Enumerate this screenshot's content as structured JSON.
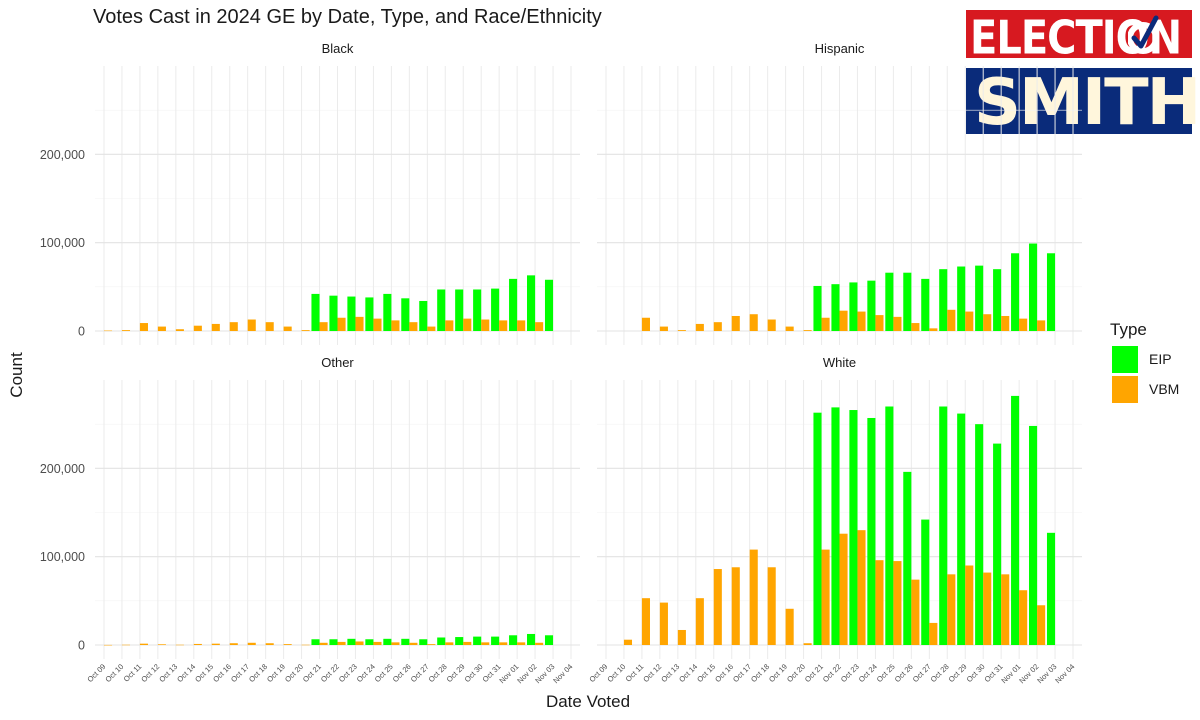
{
  "branding": {
    "logo_line1": "ELECTION",
    "logo_line2": "SMITH"
  },
  "chart_data": {
    "type": "bar",
    "title": "Votes Cast in 2024 GE by Date, Type, and Race/Ethnicity",
    "xlabel": "Date Voted",
    "ylabel": "Count",
    "ylim": [
      0,
      300000
    ],
    "yticks": [
      0,
      100000,
      200000
    ],
    "ytick_labels": [
      "0",
      "100,000",
      "200,000"
    ],
    "grid": true,
    "legend": {
      "title": "Type",
      "placement": "right"
    },
    "categories": [
      "Oct 09",
      "Oct 10",
      "Oct 11",
      "Oct 12",
      "Oct 13",
      "Oct 14",
      "Oct 15",
      "Oct 16",
      "Oct 17",
      "Oct 18",
      "Oct 19",
      "Oct 20",
      "Oct 21",
      "Oct 22",
      "Oct 23",
      "Oct 24",
      "Oct 25",
      "Oct 26",
      "Oct 27",
      "Oct 28",
      "Oct 29",
      "Oct 30",
      "Oct 31",
      "Nov 01",
      "Nov 02",
      "Nov 03",
      "Nov 04"
    ],
    "series_colors": {
      "EIP": "#00ff00",
      "VBM": "#ffa500"
    },
    "panels": [
      {
        "name": "Black",
        "series": [
          {
            "name": "EIP",
            "values": [
              0,
              0,
              0,
              0,
              0,
              0,
              0,
              0,
              0,
              0,
              0,
              0,
              42000,
              40000,
              39000,
              38000,
              42000,
              37000,
              34000,
              47000,
              47000,
              47000,
              48000,
              59000,
              63000,
              58000,
              0
            ]
          },
          {
            "name": "VBM",
            "values": [
              500,
              1000,
              9000,
              5000,
              2000,
              6000,
              8000,
              10000,
              13000,
              10000,
              5000,
              1000,
              10000,
              15000,
              16000,
              14000,
              12000,
              10000,
              5000,
              12000,
              14000,
              13000,
              12000,
              12000,
              10000,
              0,
              0
            ]
          }
        ]
      },
      {
        "name": "Hispanic",
        "series": [
          {
            "name": "EIP",
            "values": [
              0,
              0,
              0,
              0,
              0,
              0,
              0,
              0,
              0,
              0,
              0,
              0,
              51000,
              53000,
              55000,
              57000,
              66000,
              66000,
              59000,
              70000,
              73000,
              74000,
              70000,
              88000,
              99000,
              88000,
              0
            ]
          },
          {
            "name": "VBM",
            "values": [
              0,
              0,
              15000,
              5000,
              1000,
              8000,
              10000,
              17000,
              19000,
              13000,
              5000,
              1000,
              15000,
              23000,
              22000,
              18000,
              16000,
              9000,
              3000,
              24000,
              22000,
              19000,
              17000,
              14000,
              12000,
              0,
              0
            ]
          }
        ]
      },
      {
        "name": "Other",
        "series": [
          {
            "name": "EIP",
            "values": [
              0,
              0,
              0,
              0,
              0,
              0,
              0,
              0,
              0,
              0,
              0,
              0,
              6500,
              6500,
              7000,
              6500,
              7000,
              7000,
              6500,
              8500,
              9000,
              9500,
              9500,
              11000,
              12500,
              11000,
              0
            ]
          },
          {
            "name": "VBM",
            "values": [
              100,
              300,
              1500,
              800,
              300,
              1200,
              1500,
              2000,
              2500,
              2000,
              1000,
              300,
              2500,
              3500,
              4000,
              3500,
              3000,
              2500,
              1000,
              3000,
              3500,
              3000,
              3000,
              3000,
              2500,
              0,
              0
            ]
          }
        ]
      },
      {
        "name": "White",
        "series": [
          {
            "name": "EIP",
            "values": [
              0,
              0,
              0,
              0,
              0,
              0,
              0,
              0,
              0,
              0,
              0,
              0,
              263000,
              269000,
              266000,
              257000,
              270000,
              196000,
              142000,
              270000,
              262000,
              250000,
              228000,
              282000,
              248000,
              127000,
              0
            ]
          },
          {
            "name": "VBM",
            "values": [
              0,
              6000,
              53000,
              48000,
              17000,
              53000,
              86000,
              88000,
              108000,
              88000,
              41000,
              2000,
              108000,
              126000,
              130000,
              96000,
              95000,
              74000,
              25000,
              80000,
              90000,
              82000,
              80000,
              62000,
              45000,
              0,
              0
            ]
          }
        ]
      }
    ]
  }
}
